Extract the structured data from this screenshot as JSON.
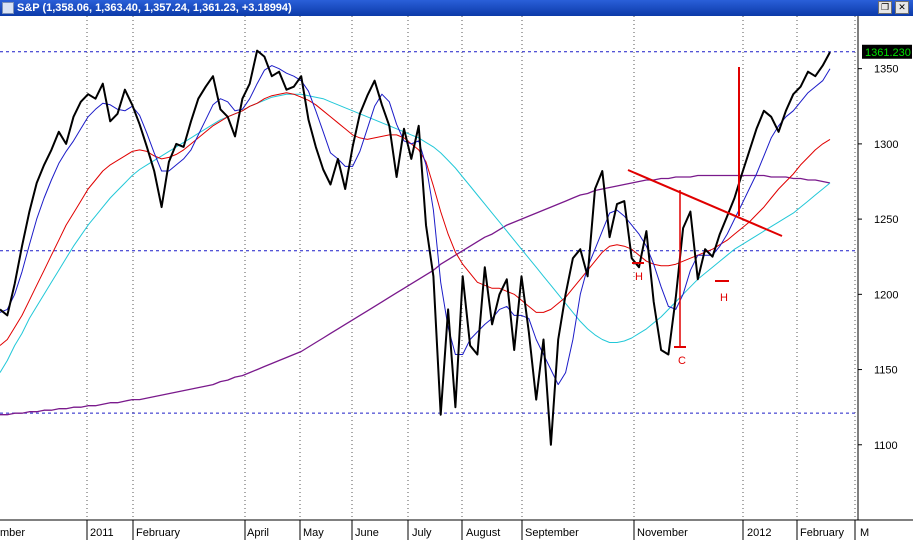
{
  "window": {
    "title": "S&P (1,358.06, 1,363.40, 1,357.24, 1,361.23, +3.18994)",
    "restore_glyph": "❐",
    "close_glyph": "✕"
  },
  "chart_data": {
    "type": "line",
    "title": "S&P (1,358.06, 1,363.40, 1,357.24, 1,361.23, +3.18994)",
    "ylim": [
      1050,
      1385
    ],
    "y_ticks": [
      1100,
      1150,
      1200,
      1250,
      1300,
      1350
    ],
    "x_labels": [
      "mber",
      "2011",
      "February",
      "April",
      "May",
      "June",
      "July",
      "August",
      "September",
      "November",
      "2012",
      "February",
      "M"
    ],
    "last_value_label": "1361.230",
    "grid": "vertical dotted lines at month boundaries",
    "horizontal_lines": [
      1361.23,
      1229,
      1121
    ],
    "colors": {
      "price": "#000000",
      "ma_blue": "#1c1cc8",
      "ma_red": "#e00000",
      "ma_cyan": "#22c8d8",
      "ma_purple": "#7a1a8c",
      "annotation": "#e00000",
      "hline": "#1c1cc8"
    },
    "annotations": [
      "H",
      "C",
      "H"
    ],
    "series": [
      {
        "values": [
          1190,
          1186,
          1207,
          1232,
          1255,
          1274,
          1286,
          1296,
          1308,
          1300,
          1318,
          1328,
          1333,
          1330,
          1340,
          1315,
          1320,
          1336,
          1326,
          1313,
          1298,
          1282,
          1258,
          1288,
          1300,
          1298,
          1315,
          1330,
          1338,
          1345,
          1323,
          1318,
          1305,
          1330,
          1340,
          1362,
          1358,
          1345,
          1348,
          1336,
          1338,
          1345,
          1316,
          1298,
          1283,
          1273,
          1290,
          1270,
          1298,
          1320,
          1332,
          1342,
          1326,
          1312,
          1278,
          1310,
          1290,
          1312,
          1246,
          1212,
          1120,
          1190,
          1125,
          1212,
          1166,
          1160,
          1218,
          1180,
          1200,
          1210,
          1163,
          1212,
          1175,
          1130,
          1170,
          1100,
          1170,
          1200,
          1224,
          1230,
          1212,
          1270,
          1282,
          1238,
          1260,
          1262,
          1224,
          1218,
          1242,
          1195,
          1163,
          1160,
          1198,
          1244,
          1255,
          1210,
          1230,
          1225,
          1240,
          1252,
          1264,
          1280,
          1295,
          1310,
          1322,
          1318,
          1308,
          1322,
          1333,
          1338,
          1348,
          1345,
          1352,
          1361
        ]
      },
      {
        "values": [
          1188,
          1190,
          1200,
          1215,
          1233,
          1250,
          1264,
          1276,
          1287,
          1295,
          1302,
          1310,
          1318,
          1323,
          1327,
          1326,
          1323,
          1322,
          1325,
          1319,
          1307,
          1294,
          1282,
          1282,
          1286,
          1290,
          1296,
          1306,
          1316,
          1326,
          1330,
          1328,
          1322,
          1323,
          1330,
          1340,
          1349,
          1352,
          1350,
          1347,
          1345,
          1342,
          1335,
          1322,
          1308,
          1294,
          1290,
          1285,
          1285,
          1295,
          1310,
          1325,
          1333,
          1328,
          1313,
          1302,
          1300,
          1302,
          1286,
          1256,
          1208,
          1178,
          1160,
          1160,
          1170,
          1175,
          1180,
          1184,
          1190,
          1192,
          1186,
          1186,
          1184,
          1170,
          1160,
          1150,
          1140,
          1148,
          1170,
          1200,
          1218,
          1230,
          1242,
          1254,
          1256,
          1252,
          1246,
          1240,
          1232,
          1220,
          1205,
          1192,
          1190,
          1200,
          1216,
          1226,
          1226,
          1226,
          1232,
          1240,
          1250,
          1260,
          1270,
          1280,
          1292,
          1304,
          1312,
          1318,
          1322,
          1328,
          1334,
          1338,
          1342,
          1350
        ]
      },
      {
        "values": [
          1166,
          1170,
          1178,
          1186,
          1196,
          1206,
          1216,
          1226,
          1236,
          1246,
          1254,
          1262,
          1270,
          1276,
          1282,
          1286,
          1289,
          1292,
          1295,
          1296,
          1295,
          1292,
          1290,
          1291,
          1293,
          1296,
          1300,
          1304,
          1308,
          1312,
          1315,
          1318,
          1320,
          1322,
          1325,
          1327,
          1330,
          1332,
          1333,
          1334,
          1333,
          1331,
          1329,
          1326,
          1322,
          1318,
          1314,
          1310,
          1306,
          1304,
          1303,
          1304,
          1305,
          1306,
          1306,
          1304,
          1300,
          1296,
          1288,
          1272,
          1255,
          1240,
          1228,
          1220,
          1214,
          1208,
          1206,
          1204,
          1204,
          1202,
          1200,
          1196,
          1192,
          1188,
          1188,
          1190,
          1194,
          1198,
          1204,
          1210,
          1216,
          1222,
          1228,
          1232,
          1233,
          1232,
          1230,
          1226,
          1222,
          1220,
          1219,
          1219,
          1220,
          1222,
          1224,
          1226,
          1228,
          1230,
          1233,
          1236,
          1240,
          1244,
          1248,
          1253,
          1258,
          1264,
          1270,
          1275,
          1280,
          1286,
          1291,
          1296,
          1300,
          1303
        ]
      },
      {
        "values": [
          1148,
          1156,
          1166,
          1174,
          1184,
          1192,
          1200,
          1208,
          1216,
          1224,
          1232,
          1239,
          1246,
          1252,
          1258,
          1264,
          1269,
          1274,
          1279,
          1283,
          1286,
          1289,
          1292,
          1295,
          1298,
          1301,
          1304,
          1307,
          1310,
          1313,
          1316,
          1318,
          1320,
          1322,
          1325,
          1327,
          1329,
          1331,
          1332,
          1333,
          1333,
          1333,
          1332,
          1331,
          1330,
          1328,
          1326,
          1324,
          1322,
          1320,
          1318,
          1316,
          1314,
          1312,
          1310,
          1308,
          1306,
          1304,
          1301,
          1298,
          1294,
          1289,
          1284,
          1278,
          1272,
          1266,
          1260,
          1254,
          1248,
          1242,
          1236,
          1230,
          1224,
          1218,
          1212,
          1206,
          1200,
          1194,
          1188,
          1182,
          1177,
          1173,
          1170,
          1168,
          1168,
          1169,
          1171,
          1174,
          1177,
          1181,
          1185,
          1190,
          1195,
          1200,
          1205,
          1210,
          1214,
          1218,
          1222,
          1226,
          1230,
          1233,
          1236,
          1239,
          1242,
          1245,
          1248,
          1251,
          1254,
          1258,
          1262,
          1266,
          1270,
          1274
        ]
      },
      {
        "values": [
          1120,
          1120,
          1121,
          1121,
          1122,
          1122,
          1123,
          1123,
          1124,
          1124,
          1125,
          1125,
          1126,
          1126,
          1127,
          1128,
          1128,
          1129,
          1130,
          1130,
          1131,
          1132,
          1133,
          1134,
          1135,
          1136,
          1137,
          1138,
          1139,
          1140,
          1142,
          1143,
          1145,
          1146,
          1148,
          1150,
          1152,
          1154,
          1156,
          1158,
          1160,
          1162,
          1165,
          1168,
          1171,
          1174,
          1177,
          1180,
          1183,
          1186,
          1189,
          1192,
          1195,
          1198,
          1201,
          1204,
          1207,
          1210,
          1213,
          1216,
          1220,
          1223,
          1226,
          1229,
          1232,
          1235,
          1238,
          1240,
          1243,
          1246,
          1248,
          1250,
          1252,
          1254,
          1256,
          1258,
          1260,
          1262,
          1264,
          1266,
          1267,
          1269,
          1270,
          1271,
          1272,
          1273,
          1274,
          1275,
          1276,
          1276,
          1277,
          1277,
          1278,
          1278,
          1278,
          1279,
          1279,
          1279,
          1279,
          1279,
          1279,
          1279,
          1279,
          1279,
          1279,
          1278,
          1278,
          1278,
          1277,
          1277,
          1276,
          1276,
          1275,
          1274
        ]
      }
    ]
  }
}
